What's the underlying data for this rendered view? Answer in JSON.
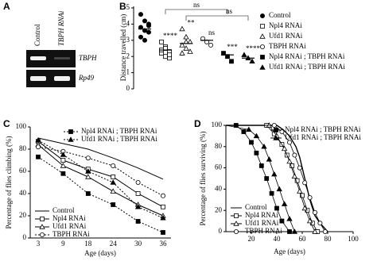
{
  "panel_labels": [
    "A",
    "B",
    "C",
    "D"
  ],
  "gel": {
    "lanes": [
      "Control",
      "TBPH RNAi"
    ],
    "bands": [
      "TBPH",
      "Rp49"
    ]
  },
  "chart_data": [
    {
      "type": "dot",
      "ylabel": "Distance travelled (cm)",
      "ylim": [
        0,
        5
      ],
      "yticks": [
        0,
        1,
        2,
        3,
        4,
        5
      ],
      "series": [
        {
          "name": "Control",
          "marker": "filled-circle",
          "color": "#000000",
          "mean": 3.7,
          "values": [
            4.6,
            4.2,
            3.9,
            3.8,
            3.6,
            3.5,
            3.2,
            3.0,
            4.0
          ]
        },
        {
          "name": "Npl4 RNAi",
          "marker": "open-square",
          "color": "#000000",
          "mean": 2.4,
          "values": [
            2.9,
            2.6,
            2.3,
            2.2,
            2.0,
            1.9,
            2.4,
            2.5,
            2.1
          ]
        },
        {
          "name": "Ufd1 RNAi",
          "marker": "open-triangle",
          "color": "#000000",
          "mean": 2.8,
          "values": [
            3.7,
            3.2,
            2.9,
            2.7,
            2.5,
            2.3,
            2.2,
            2.9
          ]
        },
        {
          "name": "TBPH RNAi",
          "marker": "open-circle",
          "color": "#000000",
          "mean": 3.0,
          "values": [
            3.1,
            2.9,
            2.7
          ]
        },
        {
          "name": "Npl4 RNAi ; TBPH RNAi",
          "marker": "filled-square",
          "color": "#000000",
          "mean": 2.1,
          "values": [
            2.2,
            2.0,
            1.7
          ]
        },
        {
          "name": "Ufd1 RNAi ; TBPH RNAi",
          "marker": "filled-triangle",
          "color": "#000000",
          "mean": 1.9,
          "values": [
            2.1,
            1.9,
            1.7
          ]
        }
      ],
      "significance": [
        null,
        "****",
        "**",
        "ns",
        "***",
        "****"
      ],
      "bracket_labels": [
        "ns",
        "ns"
      ]
    },
    {
      "type": "line",
      "xlabel": "Age (days)",
      "ylabel": "Percentage of flies climbing (%)",
      "categories": [
        3,
        9,
        18,
        24,
        30,
        36
      ],
      "ylim": [
        0,
        100
      ],
      "yticks": [
        0,
        20,
        40,
        60,
        80,
        100
      ],
      "series": [
        {
          "name": "Control",
          "marker": "none",
          "dashed": false,
          "color": "#000000",
          "values": [
            90,
            85,
            80,
            72,
            63,
            53
          ]
        },
        {
          "name": "Npl4 RNAi",
          "marker": "open-square",
          "dashed": false,
          "color": "#000000",
          "values": [
            87,
            70,
            62,
            55,
            40,
            28
          ]
        },
        {
          "name": "Ufd1 RNAi",
          "marker": "open-triangle",
          "dashed": false,
          "color": "#000000",
          "values": [
            84,
            65,
            55,
            42,
            30,
            20
          ]
        },
        {
          "name": "TBPH RNAi",
          "marker": "open-circle",
          "dashed": true,
          "color": "#000000",
          "values": [
            82,
            78,
            72,
            65,
            50,
            38
          ]
        },
        {
          "name": "Npl4 RNAi ; TBPH RNAi",
          "marker": "filled-square",
          "dashed": true,
          "color": "#000000",
          "values": [
            73,
            58,
            40,
            30,
            15,
            5
          ]
        },
        {
          "name": "Ufd1 RNAi ; TBPH RNAi",
          "marker": "filled-triangle",
          "dashed": true,
          "color": "#000000",
          "values": [
            88,
            75,
            60,
            50,
            28,
            18
          ]
        }
      ]
    },
    {
      "type": "survival",
      "xlabel": "Age (days)",
      "ylabel": "Percentage of flies surviving (%)",
      "xlim": [
        0,
        100
      ],
      "xticks": [
        20,
        40,
        60,
        80,
        100
      ],
      "ylim": [
        0,
        100
      ],
      "yticks": [
        0,
        20,
        40,
        60,
        80,
        100
      ],
      "series": [
        {
          "name": "Control",
          "marker": "none",
          "color": "#000000",
          "x": [
            0,
            40,
            45,
            50,
            55,
            58,
            62,
            66,
            70,
            74,
            80
          ],
          "values": [
            100,
            100,
            96,
            90,
            80,
            70,
            50,
            30,
            15,
            8,
            0
          ]
        },
        {
          "name": "Npl4 RNAi",
          "marker": "open-square",
          "color": "#000000",
          "x": [
            0,
            32,
            38,
            44,
            48,
            52,
            56,
            60,
            64,
            68,
            72
          ],
          "values": [
            100,
            100,
            92,
            82,
            72,
            62,
            48,
            34,
            20,
            8,
            0
          ]
        },
        {
          "name": "Ufd1 RNAi",
          "marker": "open-triangle",
          "color": "#000000",
          "x": [
            0,
            34,
            40,
            46,
            50,
            54,
            58,
            62,
            66,
            70
          ],
          "values": [
            100,
            100,
            90,
            78,
            66,
            52,
            38,
            22,
            10,
            0
          ]
        },
        {
          "name": "TBPH RNAi",
          "marker": "open-circle",
          "color": "#000000",
          "x": [
            0,
            38,
            44,
            50,
            54,
            58,
            62,
            66,
            70,
            74,
            78
          ],
          "values": [
            100,
            100,
            94,
            84,
            72,
            60,
            46,
            32,
            18,
            8,
            0
          ]
        },
        {
          "name": "Npl4 RNAi ; TBPH RNAi",
          "marker": "filled-square",
          "color": "#000000",
          "x": [
            0,
            8,
            14,
            20,
            24,
            28,
            32,
            36,
            40,
            44,
            50
          ],
          "values": [
            100,
            100,
            94,
            84,
            74,
            62,
            50,
            36,
            22,
            10,
            0
          ]
        },
        {
          "name": "Ufd1 RNAi ; TBPH RNAi",
          "marker": "filled-triangle",
          "color": "#000000",
          "x": [
            0,
            18,
            24,
            30,
            34,
            38,
            42,
            46,
            50,
            54
          ],
          "values": [
            100,
            96,
            90,
            80,
            68,
            54,
            40,
            26,
            12,
            0
          ]
        }
      ]
    }
  ]
}
